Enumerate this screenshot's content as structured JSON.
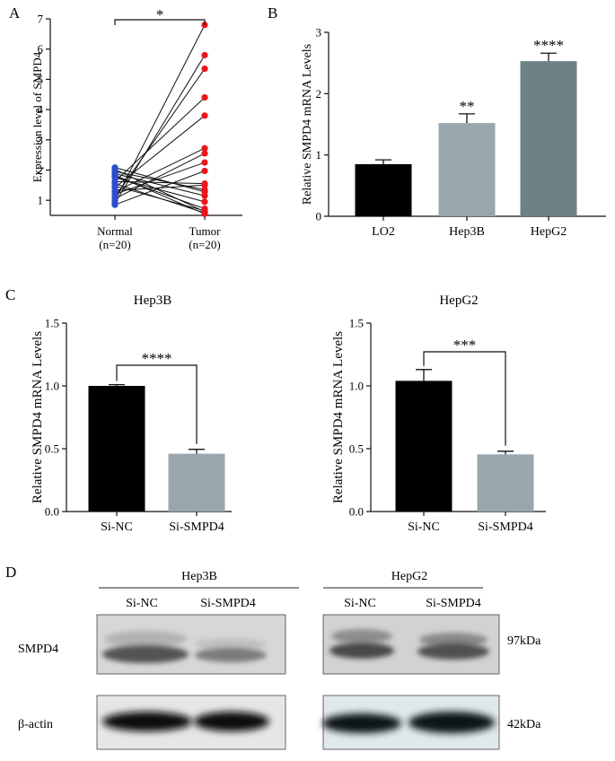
{
  "panels": {
    "a": "A",
    "b": "B",
    "c": "C",
    "d": "D"
  },
  "chart_data": [
    {
      "id": "A",
      "type": "scatter",
      "title": "",
      "ylabel": "Expression level of SMPD4",
      "xlabel": "",
      "ylim": [
        0.5,
        7
      ],
      "yticks": [
        1,
        2,
        3,
        4,
        5,
        6,
        7
      ],
      "groups": [
        {
          "name": "Normal",
          "n_label": "(n=20)",
          "color": "#2a4fc9"
        },
        {
          "name": "Tumor",
          "n_label": "(n=20)",
          "color": "#e8161b"
        }
      ],
      "pairs": [
        [
          2.08,
          1.28
        ],
        [
          2.02,
          0.62
        ],
        [
          1.95,
          1.35
        ],
        [
          1.88,
          1.15
        ],
        [
          1.83,
          0.55
        ],
        [
          1.78,
          0.72
        ],
        [
          1.75,
          0.95
        ],
        [
          1.62,
          4.4
        ],
        [
          1.55,
          0.58
        ],
        [
          1.47,
          0.65
        ],
        [
          1.62,
          1.55
        ],
        [
          1.42,
          3.8
        ],
        [
          1.32,
          1.5
        ],
        [
          1.28,
          2.72
        ],
        [
          1.1,
          5.35
        ],
        [
          1.2,
          2.25
        ],
        [
          0.98,
          6.8
        ],
        [
          0.9,
          5.8
        ],
        [
          0.85,
          1.97
        ],
        [
          1.05,
          2.55
        ]
      ],
      "significance": "*"
    },
    {
      "id": "B",
      "type": "bar",
      "title": "",
      "ylabel": "Relative SMPD4 mRNA Levels",
      "xlabel": "",
      "ylim": [
        0,
        3
      ],
      "yticks": [
        0,
        1,
        2,
        3
      ],
      "categories": [
        "LO2",
        "Hep3B",
        "HepG2"
      ],
      "values": [
        0.85,
        1.52,
        2.53
      ],
      "errors": [
        0.07,
        0.15,
        0.13
      ],
      "colors": [
        "#000000",
        "#98a7ae",
        "#6e8187"
      ],
      "significance": [
        "",
        "**",
        "****"
      ]
    },
    {
      "id": "C1",
      "type": "bar",
      "title": "Hep3B",
      "ylabel": "Relative SMPD4 mRNA Levels",
      "xlabel": "",
      "ylim": [
        0,
        1.5
      ],
      "yticks": [
        0.0,
        0.5,
        1.0,
        1.5
      ],
      "ytick_labels": [
        "0.0",
        "0.5",
        "1.0",
        "1.5"
      ],
      "categories": [
        "Si-NC",
        "Si-SMPD4"
      ],
      "values": [
        1.0,
        0.46
      ],
      "errors": [
        0.01,
        0.035
      ],
      "colors": [
        "#000000",
        "#98a7ae"
      ],
      "significance": "****"
    },
    {
      "id": "C2",
      "type": "bar",
      "title": "HepG2",
      "ylabel": "Relative SMPD4 mRNA Levels",
      "xlabel": "",
      "ylim": [
        0,
        1.5
      ],
      "yticks": [
        0.0,
        0.5,
        1.0,
        1.5
      ],
      "ytick_labels": [
        "0.0",
        "0.5",
        "1.0",
        "1.5"
      ],
      "categories": [
        "Si-NC",
        "Si-SMPD4"
      ],
      "values": [
        1.04,
        0.455
      ],
      "errors": [
        0.09,
        0.025
      ],
      "colors": [
        "#000000",
        "#98a7ae"
      ],
      "significance": "***"
    }
  ],
  "western_blot": {
    "groups": [
      {
        "name": "Hep3B",
        "lanes": [
          "Si-NC",
          "Si-SMPD4"
        ]
      },
      {
        "name": "HepG2",
        "lanes": [
          "Si-NC",
          "Si-SMPD4"
        ]
      }
    ],
    "rows": [
      {
        "protein": "SMPD4",
        "size": "97kDa"
      },
      {
        "protein": "β-actin",
        "size": "42kDa"
      }
    ]
  }
}
